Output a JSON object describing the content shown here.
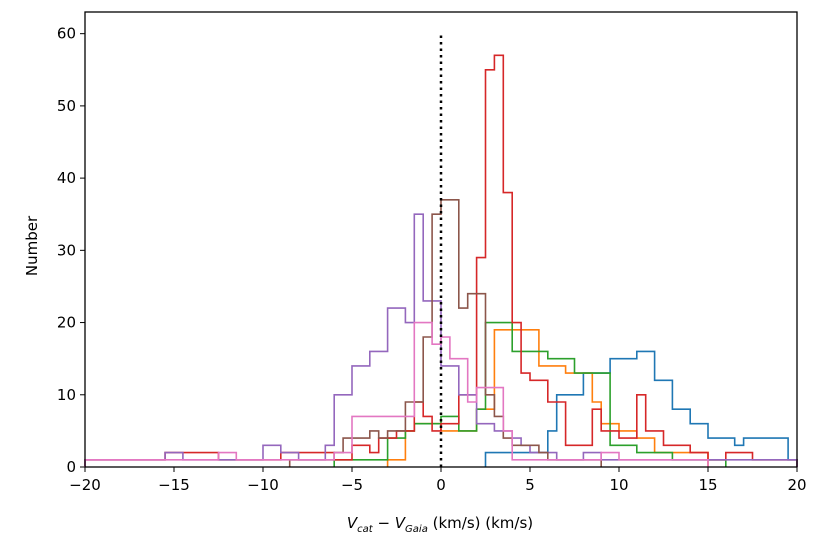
{
  "chart_data": {
    "type": "histogram",
    "title": "",
    "xlabel": "V_cat − V_Gaia (km/s) (km/s)",
    "ylabel": "Number",
    "xlim": [
      -20,
      20
    ],
    "ylim": [
      0,
      63
    ],
    "xticks": [
      -20,
      -15,
      -10,
      -5,
      0,
      5,
      10,
      15,
      20
    ],
    "xtick_labels": [
      "−20",
      "−15",
      "−10",
      "−5",
      "0",
      "5",
      "10",
      "15",
      "20"
    ],
    "yticks": [
      0,
      10,
      20,
      30,
      40,
      50,
      60
    ],
    "ytick_labels": [
      "0",
      "10",
      "20",
      "30",
      "40",
      "50",
      "60"
    ],
    "reference_line": {
      "x": 0,
      "y_from": 0,
      "y_to": 60,
      "style": "dotted",
      "color": "#000000"
    },
    "series": [
      {
        "name": "blue",
        "color": "#1f77b4",
        "edges": [
          2.5,
          6,
          6.5,
          8,
          9.5,
          11,
          12,
          13,
          14,
          15,
          16.5,
          17,
          19.5,
          20
        ],
        "counts": [
          2,
          5,
          10,
          13,
          15,
          16,
          12,
          8,
          6,
          4,
          3,
          4,
          1
        ]
      },
      {
        "name": "orange",
        "color": "#ff7f0e",
        "edges": [
          -3,
          -2,
          -1.5,
          0,
          2,
          3,
          5.5,
          7,
          8.5,
          9,
          10,
          11,
          12,
          15
        ],
        "counts": [
          1,
          5,
          6,
          5,
          8,
          19,
          14,
          13,
          9,
          6,
          5,
          4,
          2
        ]
      },
      {
        "name": "green",
        "color": "#2ca02c",
        "edges": [
          -6,
          -3,
          -2,
          -1.5,
          0,
          1,
          2,
          2.5,
          4,
          6,
          7.5,
          9.5,
          11,
          13,
          16
        ],
        "counts": [
          1,
          4,
          5,
          6,
          7,
          5,
          8,
          20,
          16,
          15,
          13,
          3,
          2,
          1
        ]
      },
      {
        "name": "red",
        "color": "#d62728",
        "edges": [
          -20,
          -15.5,
          -12.5,
          -9,
          -6,
          -5,
          -4,
          -3.5,
          -2.5,
          -1.5,
          -1,
          -0.5,
          0,
          1,
          2,
          2.5,
          3,
          3.5,
          4,
          4.5,
          5,
          6,
          7,
          8.5,
          9,
          10,
          11,
          11.5,
          12.5,
          14,
          15,
          16,
          17.5,
          20
        ],
        "counts": [
          1,
          2,
          1,
          2,
          1,
          3,
          2,
          4,
          5,
          9,
          7,
          5,
          6,
          10,
          29,
          55,
          57,
          38,
          20,
          13,
          12,
          9,
          3,
          8,
          5,
          4,
          10,
          5,
          3,
          2,
          1,
          2,
          1
        ]
      },
      {
        "name": "purple",
        "color": "#9467bd",
        "edges": [
          -20,
          -15.5,
          -14.5,
          -10,
          -9,
          -8,
          -6.5,
          -6,
          -5,
          -4,
          -3,
          -2,
          -1.5,
          -1,
          0,
          1,
          2,
          3,
          4,
          4.5,
          5,
          5.5,
          6.5,
          8,
          9,
          20
        ],
        "counts": [
          1,
          2,
          1,
          3,
          2,
          1,
          3,
          10,
          14,
          16,
          22,
          20,
          35,
          23,
          14,
          10,
          6,
          5,
          4,
          3,
          2,
          2,
          1,
          2,
          1
        ]
      },
      {
        "name": "brown",
        "color": "#8c564b",
        "edges": [
          -8.5,
          -6,
          -5.5,
          -4,
          -3.5,
          -3,
          -2,
          -1,
          -0.5,
          0,
          1,
          1.5,
          2.5,
          3,
          3.5,
          4,
          5.5,
          6,
          9
        ],
        "counts": [
          1,
          2,
          4,
          5,
          4,
          5,
          9,
          18,
          35,
          37,
          22,
          24,
          10,
          7,
          4,
          3,
          2,
          1
        ]
      },
      {
        "name": "pink",
        "color": "#e377c2",
        "edges": [
          -20,
          -12.5,
          -11.5,
          -6,
          -5,
          -1.5,
          -0.5,
          0,
          0.5,
          1.5,
          2,
          3.5,
          4,
          9,
          10,
          15
        ],
        "counts": [
          1,
          2,
          1,
          2,
          7,
          20,
          17,
          18,
          15,
          9,
          11,
          5,
          1,
          2,
          1
        ]
      }
    ]
  }
}
